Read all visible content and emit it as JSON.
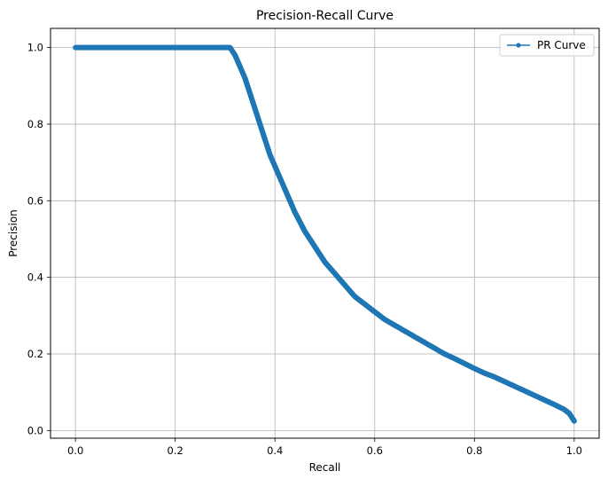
{
  "chart_data": {
    "type": "line",
    "title": "Precision-Recall Curve",
    "xlabel": "Recall",
    "ylabel": "Precision",
    "xlim": [
      -0.05,
      1.05
    ],
    "ylim": [
      -0.02,
      1.05
    ],
    "xticks": [
      0.0,
      0.2,
      0.4,
      0.6,
      0.8,
      1.0
    ],
    "xtick_labels": [
      "0.0",
      "0.2",
      "0.4",
      "0.6",
      "0.8",
      "1.0"
    ],
    "yticks": [
      0.0,
      0.2,
      0.4,
      0.6,
      0.8,
      1.0
    ],
    "ytick_labels": [
      "0.0",
      "0.2",
      "0.4",
      "0.6",
      "0.8",
      "1.0"
    ],
    "grid": true,
    "legend_position": "top-right",
    "series": [
      {
        "name": "PR Curve",
        "color": "#1f77b4",
        "marker": "circle",
        "x": [
          0.0,
          0.05,
          0.1,
          0.15,
          0.2,
          0.25,
          0.3,
          0.31,
          0.32,
          0.33,
          0.34,
          0.35,
          0.36,
          0.37,
          0.38,
          0.39,
          0.4,
          0.42,
          0.44,
          0.46,
          0.48,
          0.5,
          0.52,
          0.54,
          0.56,
          0.58,
          0.6,
          0.62,
          0.64,
          0.66,
          0.68,
          0.7,
          0.72,
          0.74,
          0.76,
          0.78,
          0.8,
          0.82,
          0.84,
          0.86,
          0.88,
          0.9,
          0.92,
          0.94,
          0.96,
          0.98,
          0.99,
          1.0
        ],
        "y": [
          1.0,
          1.0,
          1.0,
          1.0,
          1.0,
          1.0,
          1.0,
          1.0,
          0.98,
          0.95,
          0.92,
          0.88,
          0.84,
          0.8,
          0.76,
          0.72,
          0.69,
          0.63,
          0.57,
          0.52,
          0.48,
          0.44,
          0.41,
          0.38,
          0.35,
          0.33,
          0.31,
          0.29,
          0.275,
          0.26,
          0.245,
          0.23,
          0.215,
          0.2,
          0.188,
          0.175,
          0.162,
          0.15,
          0.14,
          0.128,
          0.116,
          0.104,
          0.092,
          0.08,
          0.068,
          0.055,
          0.045,
          0.025
        ]
      }
    ]
  }
}
